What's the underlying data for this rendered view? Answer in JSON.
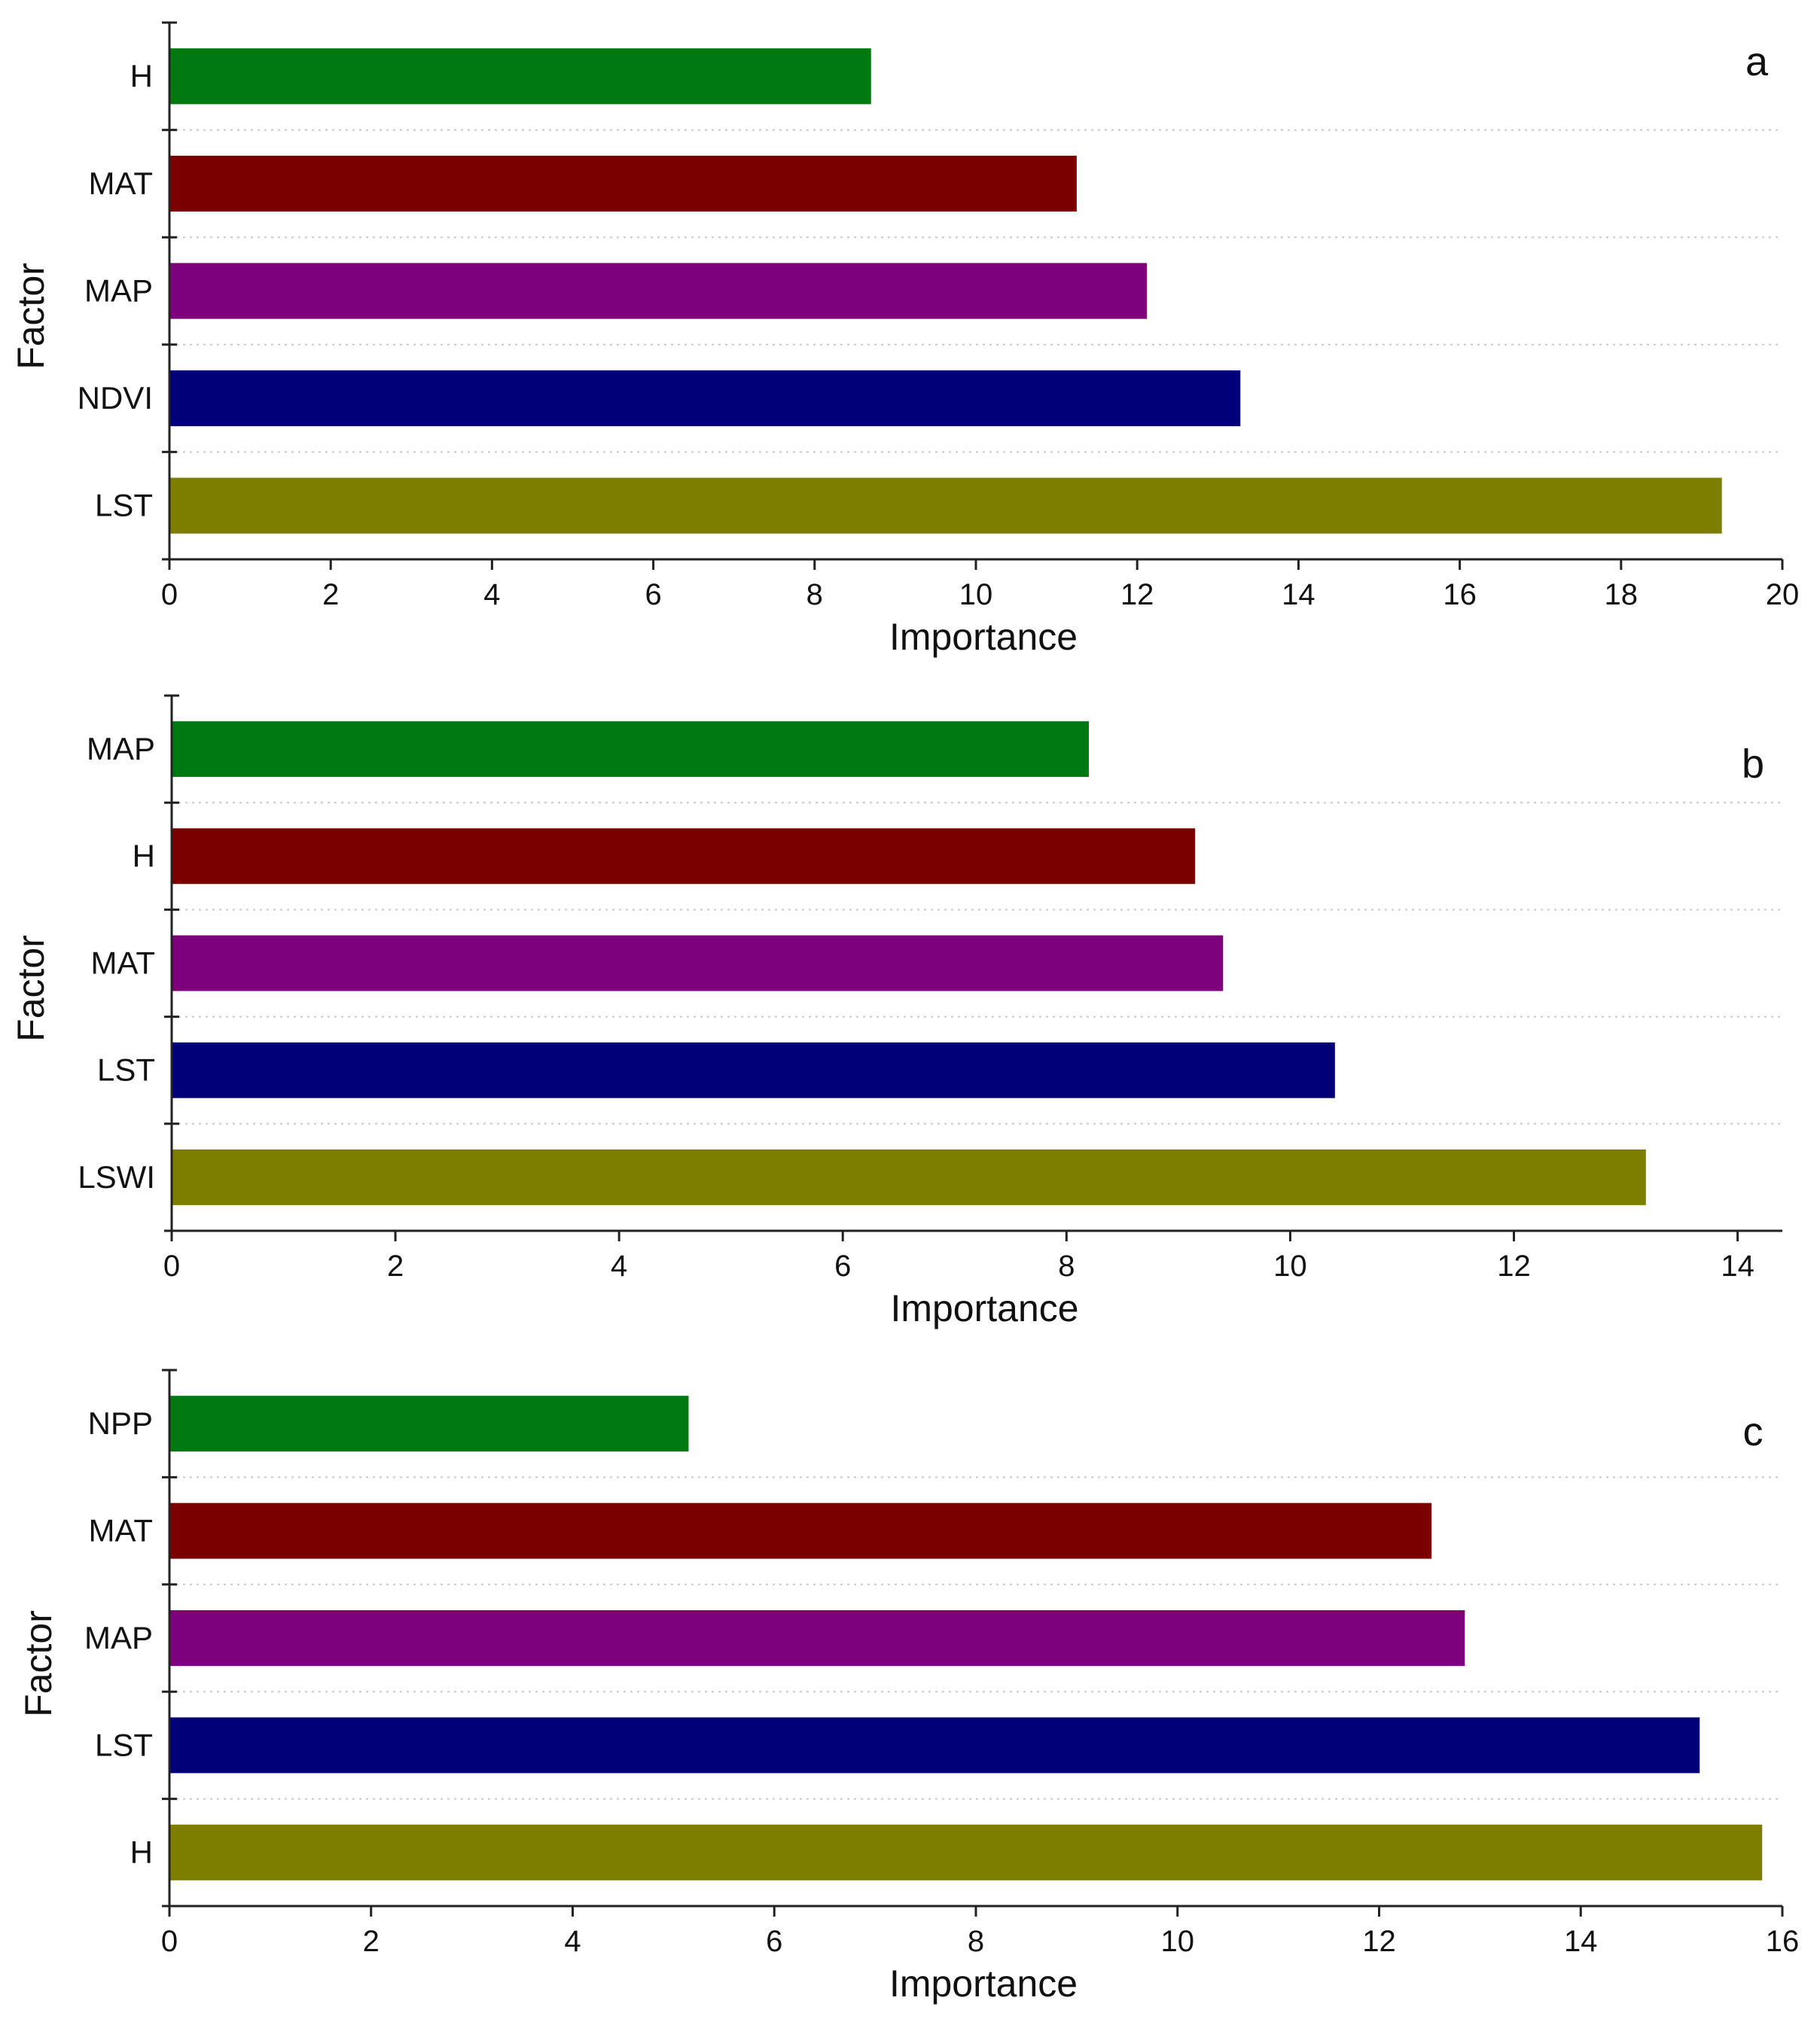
{
  "figure": {
    "name": "importance-bar-charts"
  },
  "chart_data": [
    {
      "type": "bar",
      "orientation": "horizontal",
      "panel_label": "a",
      "categories": [
        "H",
        "MAT",
        "MAP",
        "NDVI",
        "LST"
      ],
      "values": [
        8.7,
        11.25,
        12.12,
        13.28,
        19.25
      ],
      "colors": [
        "#007a10",
        "#7a0000",
        "#7d007a",
        "#020078",
        "#7d7d00"
      ],
      "xlabel": "Importance",
      "ylabel": "Factor",
      "xlim": [
        0,
        20
      ],
      "xticks": [
        0,
        2,
        4,
        6,
        8,
        10,
        12,
        14,
        16,
        18,
        20
      ],
      "grid": "horizontal dotted"
    },
    {
      "type": "bar",
      "orientation": "horizontal",
      "panel_label": "b",
      "categories": [
        "MAP",
        "H",
        "MAT",
        "LST",
        "LSWI"
      ],
      "values": [
        8.2,
        9.15,
        9.4,
        10.4,
        13.18
      ],
      "colors": [
        "#007a10",
        "#7a0000",
        "#7d007a",
        "#020078",
        "#7d7d00"
      ],
      "xlabel": "Importance",
      "ylabel": "Factor",
      "xlim": [
        0,
        14.4
      ],
      "xticks": [
        0,
        2,
        4,
        6,
        8,
        10,
        12,
        14
      ],
      "grid": "horizontal dotted"
    },
    {
      "type": "bar",
      "orientation": "horizontal",
      "panel_label": "c",
      "categories": [
        "NPP",
        "MAT",
        "MAP",
        "LST",
        "H"
      ],
      "values": [
        5.15,
        12.52,
        12.85,
        15.18,
        15.8
      ],
      "colors": [
        "#007a10",
        "#7a0000",
        "#7d007a",
        "#020078",
        "#7d7d00"
      ],
      "xlabel": "Importance",
      "ylabel": "Factor",
      "xlim": [
        0,
        16
      ],
      "xticks": [
        0,
        2,
        4,
        6,
        8,
        10,
        12,
        14,
        16
      ],
      "grid": "horizontal dotted"
    }
  ]
}
